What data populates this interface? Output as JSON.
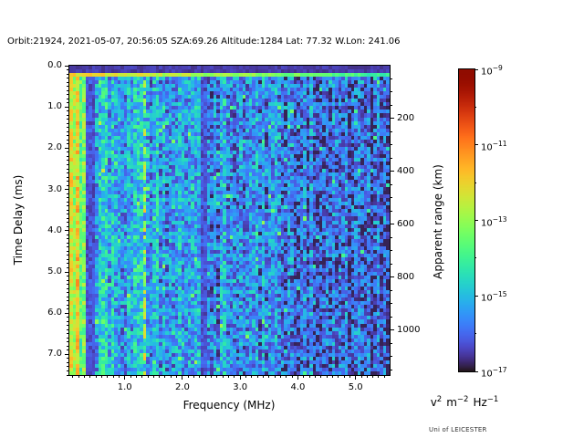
{
  "header": {
    "title": "Orbit:21924, 2021-05-07, 20:56:05 SZA:69.26 Altitude:1284 Lat: 77.32 W.Lon: 241.06"
  },
  "branding": "Uni of LEICESTER",
  "axes": {
    "x": {
      "label": "Frequency (MHz)",
      "ticks": [
        {
          "v": 1,
          "t": "1.0"
        },
        {
          "v": 2,
          "t": "2.0"
        },
        {
          "v": 3,
          "t": "3.0"
        },
        {
          "v": 4,
          "t": "4.0"
        },
        {
          "v": 5,
          "t": "5.0"
        }
      ],
      "minor_step": 0.1
    },
    "y": {
      "label": "Time Delay (ms)",
      "ticks": [
        {
          "v": 0,
          "t": "0.0"
        },
        {
          "v": 1,
          "t": "1.0"
        },
        {
          "v": 2,
          "t": "2.0"
        },
        {
          "v": 3,
          "t": "3.0"
        },
        {
          "v": 4,
          "t": "4.0"
        },
        {
          "v": 5,
          "t": "5.0"
        },
        {
          "v": 6,
          "t": "6.0"
        },
        {
          "v": 7,
          "t": "7.0"
        }
      ],
      "minor_step": 0.1
    },
    "y2": {
      "label": "Apparent range (km)",
      "ticks": [
        {
          "v": 200,
          "t": "200"
        },
        {
          "v": 400,
          "t": "400"
        },
        {
          "v": 600,
          "t": "600"
        },
        {
          "v": 800,
          "t": "800"
        },
        {
          "v": 1000,
          "t": "1000"
        }
      ],
      "minor_step": 50
    }
  },
  "colorbar": {
    "mantissa": "10",
    "tick_exponents": [
      "−9",
      "−11",
      "−13",
      "−15",
      "−17"
    ],
    "minor_exponents": [
      -10,
      -12,
      -14,
      -16
    ],
    "unit_parts": [
      {
        "base": "v",
        "exp": "2"
      },
      {
        "base": "m",
        "exp": "−2"
      },
      {
        "base": "Hz",
        "exp": "−1"
      }
    ]
  },
  "colors": {
    "background": "#ffffff",
    "text": "#000000",
    "frame": "#000000"
  },
  "chart_data": {
    "type": "heatmap",
    "title": "Orbit:21924, 2021-05-07, 20:56:05 SZA:69.26 Altitude:1284 Lat: 77.32 W.Lon: 241.06",
    "xlabel": "Frequency (MHz)",
    "ylabel": "Time Delay (ms)",
    "y2label": "Apparent range (km)",
    "xlim": [
      0.04,
      5.59
    ],
    "ylim": [
      0,
      7.5
    ],
    "y2lim": [
      0,
      1170
    ],
    "value_unit": "v2 m-2 Hz-1",
    "value_scale": "log",
    "clim": [
      "1e-17",
      "1e-9"
    ],
    "colormap": "turbo",
    "grid": false,
    "legend": "colorbar-right",
    "generation": {
      "seed": 20210507,
      "cols": 100,
      "rows": 84,
      "noise": {
        "base": 0.27,
        "slope_per_mhz": -0.03,
        "spread": 0.26,
        "sparkle_prob": 0.03,
        "sparkle_boost": 0.17,
        "column_variation": 0.06
      },
      "features": {
        "top_dark_band": {
          "max_delay_ms": 0.19,
          "value": 0.06
        },
        "surface_echo_row": {
          "min_delay_ms": 0.19,
          "max_delay_ms": 0.29,
          "value": 0.62,
          "freq_fade_per_mhz": 0.045
        },
        "low_freq_emission": {
          "max_freq_mhz": 0.3,
          "base": 0.34,
          "streak_amp": 0.22,
          "edge_boost_per_mhz": 0.8
        },
        "dark_bands_mhz": [
          [
            0.31,
            0.5
          ],
          [
            2.3,
            2.44
          ]
        ],
        "bright_line": {
          "freq_mhz": 1.34,
          "half_width_mhz": 0.036,
          "prob": 0.55,
          "base": 0.46,
          "amp": 0.2
        }
      }
    }
  }
}
